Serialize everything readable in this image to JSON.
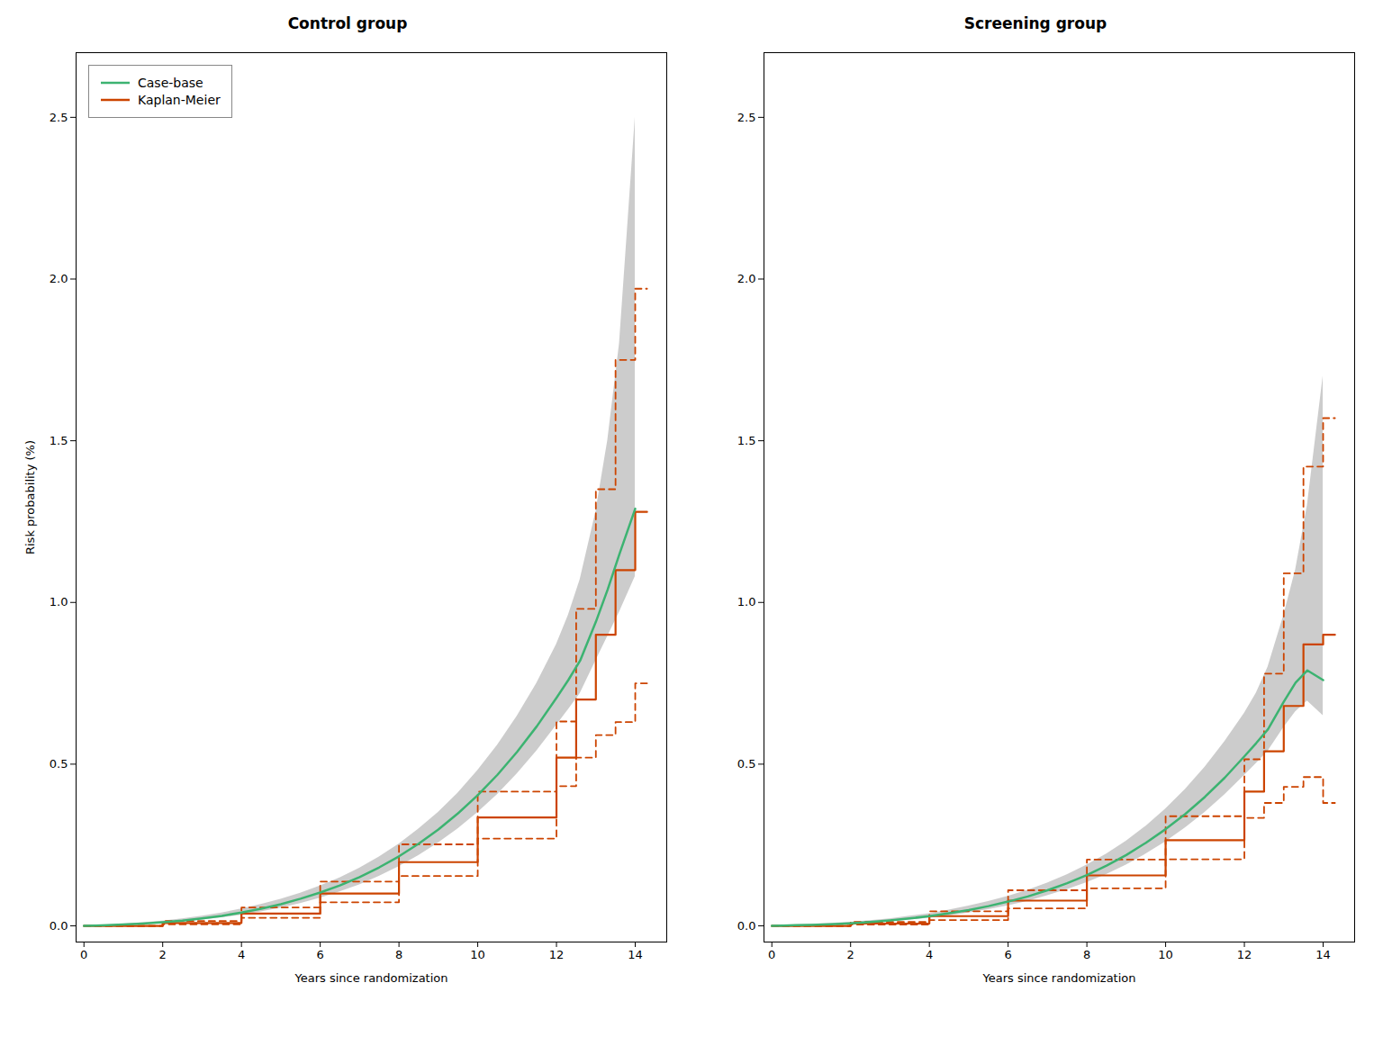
{
  "chart_data": [
    {
      "type": "line",
      "title": "Control group",
      "xlabel": "Years since randomization",
      "ylabel": "Risk probability (%)",
      "xlim": [
        -0.2,
        14.8
      ],
      "ylim": [
        -0.05,
        2.7
      ],
      "xticks": [
        0,
        2,
        4,
        6,
        8,
        10,
        12,
        14
      ],
      "yticks": [
        {
          "value": 0.0,
          "label": "0.0"
        },
        0.5,
        {
          "value": 1.0,
          "label": "1.0"
        },
        1.5,
        {
          "value": 2.0,
          "label": "2.0"
        },
        2.5
      ],
      "grid": false,
      "legend": "upper left",
      "series": [
        {
          "name": "Case-base",
          "type": "line",
          "color": "#3CB371",
          "x": [
            0,
            0.3,
            0.6,
            1,
            1.5,
            2,
            2.5,
            3,
            3.5,
            4,
            4.5,
            5,
            5.5,
            6,
            6.5,
            7,
            7.5,
            8,
            8.5,
            9,
            9.5,
            10,
            10.5,
            11,
            11.5,
            12,
            12.3,
            12.6,
            13.0,
            13.3,
            13.6,
            14.0
          ],
          "values": [
            0,
            0.001,
            0.002,
            0.004,
            0.007,
            0.011,
            0.016,
            0.023,
            0.031,
            0.041,
            0.053,
            0.067,
            0.084,
            0.103,
            0.125,
            0.151,
            0.181,
            0.215,
            0.254,
            0.298,
            0.348,
            0.404,
            0.467,
            0.538,
            0.617,
            0.705,
            0.76,
            0.82,
            0.94,
            1.04,
            1.15,
            1.29
          ],
          "band": {
            "color": "#BBBBBB",
            "lower": [
              0,
              0.001,
              0.001,
              0.003,
              0.005,
              0.008,
              0.012,
              0.018,
              0.025,
              0.033,
              0.043,
              0.055,
              0.069,
              0.086,
              0.105,
              0.127,
              0.153,
              0.183,
              0.217,
              0.256,
              0.3,
              0.35,
              0.406,
              0.47,
              0.541,
              0.62,
              0.668,
              0.718,
              0.82,
              0.895,
              0.97,
              1.08
            ],
            "upper": [
              0,
              0.002,
              0.003,
              0.006,
              0.01,
              0.015,
              0.022,
              0.03,
              0.04,
              0.052,
              0.066,
              0.082,
              0.101,
              0.123,
              0.148,
              0.178,
              0.213,
              0.253,
              0.299,
              0.351,
              0.411,
              0.48,
              0.558,
              0.648,
              0.75,
              0.87,
              0.96,
              1.07,
              1.28,
              1.5,
              1.8,
              2.5
            ]
          }
        },
        {
          "name": "Kaplan-Meier",
          "type": "step",
          "color": "#CC4400",
          "x": [
            0,
            2,
            4,
            6,
            8,
            10,
            12,
            12.5,
            13.0,
            13.5,
            14.0,
            14.3
          ],
          "values": [
            0,
            0.009,
            0.038,
            0.1,
            0.197,
            0.335,
            0.52,
            0.7,
            0.9,
            1.1,
            1.28,
            1.28
          ],
          "band": {
            "line_style": "dashed",
            "lower": [
              0,
              0.005,
              0.025,
              0.073,
              0.154,
              0.27,
              0.432,
              0.52,
              0.59,
              0.63,
              0.75,
              0.75
            ],
            "upper": [
              0,
              0.015,
              0.057,
              0.137,
              0.252,
              0.415,
              0.632,
              0.98,
              1.35,
              1.75,
              1.97,
              1.97
            ]
          }
        }
      ]
    },
    {
      "type": "line",
      "title": "Screening group",
      "xlabel": "Years since randomization",
      "xlim": [
        -0.2,
        14.8
      ],
      "ylim": [
        -0.05,
        2.7
      ],
      "xticks": [
        0,
        2,
        4,
        6,
        8,
        10,
        12,
        14
      ],
      "yticks": [
        {
          "value": 0.0,
          "label": "0.0"
        },
        0.5,
        {
          "value": 1.0,
          "label": "1.0"
        },
        1.5,
        {
          "value": 2.0,
          "label": "2.0"
        },
        2.5
      ],
      "grid": false,
      "series": [
        {
          "name": "Case-base",
          "type": "line",
          "color": "#3CB371",
          "x": [
            0,
            0.3,
            0.6,
            1,
            1.5,
            2,
            2.5,
            3,
            3.5,
            4,
            4.5,
            5,
            5.5,
            6,
            6.5,
            7,
            7.5,
            8,
            8.5,
            9,
            9.5,
            10,
            10.5,
            11,
            11.5,
            12,
            12.3,
            12.6,
            13.0,
            13.3,
            13.6,
            14.0
          ],
          "values": [
            0,
            0.001,
            0.002,
            0.003,
            0.005,
            0.008,
            0.012,
            0.017,
            0.023,
            0.03,
            0.039,
            0.049,
            0.061,
            0.075,
            0.091,
            0.11,
            0.132,
            0.157,
            0.186,
            0.219,
            0.257,
            0.299,
            0.346,
            0.399,
            0.458,
            0.524,
            0.565,
            0.608,
            0.693,
            0.752,
            0.79,
            0.76
          ],
          "band": {
            "color": "#BBBBBB",
            "lower": [
              0,
              0.001,
              0.001,
              0.002,
              0.004,
              0.006,
              0.009,
              0.013,
              0.018,
              0.024,
              0.031,
              0.04,
              0.05,
              0.062,
              0.076,
              0.093,
              0.112,
              0.134,
              0.159,
              0.188,
              0.222,
              0.26,
              0.303,
              0.351,
              0.405,
              0.465,
              0.502,
              0.54,
              0.613,
              0.662,
              0.695,
              0.65
            ],
            "upper": [
              0,
              0.002,
              0.003,
              0.005,
              0.008,
              0.011,
              0.016,
              0.022,
              0.03,
              0.038,
              0.049,
              0.061,
              0.075,
              0.091,
              0.11,
              0.132,
              0.158,
              0.188,
              0.222,
              0.262,
              0.308,
              0.361,
              0.422,
              0.491,
              0.569,
              0.657,
              0.719,
              0.8,
              0.96,
              1.1,
              1.3,
              1.7
            ]
          }
        },
        {
          "name": "Kaplan-Meier",
          "type": "step",
          "color": "#CC4400",
          "x": [
            0,
            2,
            4,
            6,
            8,
            10,
            12,
            12.5,
            13.0,
            13.5,
            14.0,
            14.3
          ],
          "values": [
            0,
            0.007,
            0.03,
            0.078,
            0.156,
            0.265,
            0.415,
            0.54,
            0.68,
            0.87,
            0.9,
            0.9
          ],
          "band": {
            "line_style": "dashed",
            "lower": [
              0,
              0.004,
              0.018,
              0.054,
              0.116,
              0.206,
              0.334,
              0.38,
              0.43,
              0.46,
              0.38,
              0.38
            ],
            "upper": [
              0,
              0.012,
              0.045,
              0.11,
              0.205,
              0.339,
              0.515,
              0.78,
              1.09,
              1.42,
              1.57,
              1.57
            ]
          }
        }
      ]
    }
  ]
}
